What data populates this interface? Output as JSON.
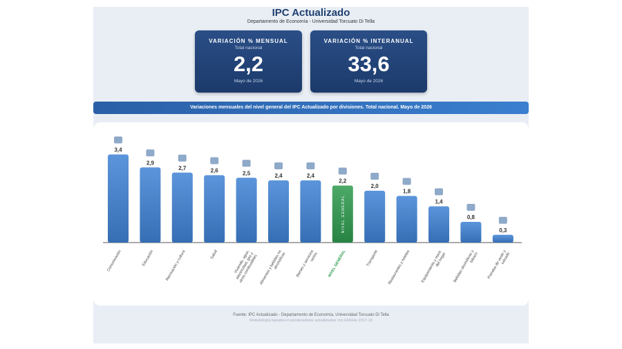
{
  "header": {
    "title": "IPC Actualizado",
    "subtitle": "Departamento de Economía - Universidad Torcuato Di Tella"
  },
  "cards": [
    {
      "title": "VARIACIÓN % MENSUAL",
      "subtitle": "Total nacional",
      "value": "2,2",
      "period": "Mayo de 2026"
    },
    {
      "title": "VARIACIÓN % INTERANUAL",
      "subtitle": "Total nacional",
      "value": "33,6",
      "period": "Mayo de 2026"
    }
  ],
  "banner": "Variaciones mensuales del nivel general del IPC Actualizado por divisiones. Total nacional. Mayo de 2026",
  "chart_data": {
    "type": "bar",
    "categories": [
      "Comunicación",
      "Educación",
      "Recreación y cultura",
      "Salud",
      "Vivienda, agua, electricidad, gas y otros combustibles",
      "Alimentos y bebidas no alcohólicas",
      "Bienes y servicios varios",
      "NIVEL GENERAL",
      "Transporte",
      "Restaurantes y hoteles",
      "Equipamiento y mant. del hogar",
      "Bebidas alcohólicas y tabaco",
      "Prendas de vestir y calzado"
    ],
    "values": [
      3.4,
      2.9,
      2.7,
      2.6,
      2.5,
      2.4,
      2.4,
      2.2,
      2.0,
      1.8,
      1.4,
      0.8,
      0.3
    ],
    "value_labels": [
      "3,4",
      "2,9",
      "2,7",
      "2,6",
      "2,5",
      "2,4",
      "2,4",
      "2,2",
      "2,0",
      "1,8",
      "1,4",
      "0,8",
      "0,3"
    ],
    "colors": [
      "#3f82d4",
      "#3f82d4",
      "#3f82d4",
      "#3f82d4",
      "#3f82d4",
      "#3f82d4",
      "#3f82d4",
      "#2e9a4e",
      "#3f82d4",
      "#3f82d4",
      "#3f82d4",
      "#3f82d4",
      "#3f82d4"
    ]
  },
  "footer": {
    "source": "Fuente: IPC Actualizado - Departamento de Economía, Universidad Torcuato Di Tella",
    "note": "Metodología basada en ponderadores actualizados con ENGHo 2017-18"
  }
}
